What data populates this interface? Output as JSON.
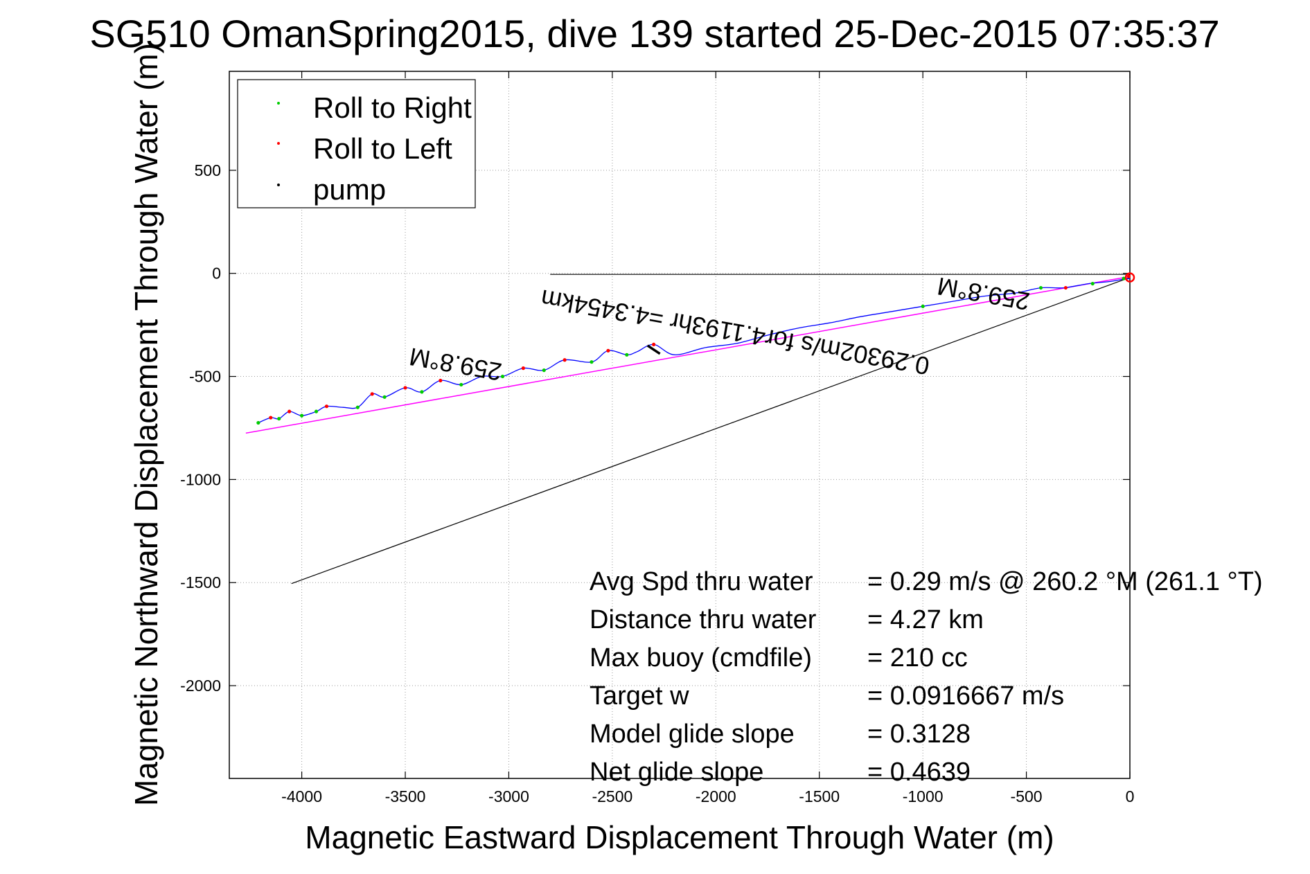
{
  "chart_data": {
    "type": "line",
    "title": "SG510 OmanSpring2015, dive 139 started 25-Dec-2015 07:35:37",
    "xlabel": "Magnetic Eastward Displacement Through Water (m)",
    "ylabel": "Magnetic Northward Displacement Through Water (m)",
    "xlim": [
      -4350,
      0
    ],
    "ylim": [
      -2450,
      980
    ],
    "xticks": [
      -4000,
      -3500,
      -3000,
      -2500,
      -2000,
      -1500,
      -1000,
      -500,
      0
    ],
    "yticks": [
      500,
      0,
      -500,
      -1000,
      -1500,
      -2000
    ],
    "grid": true,
    "legend": {
      "placement": "top-left",
      "entries": [
        {
          "label": "Roll to Right",
          "color": "#00cc00"
        },
        {
          "label": "Roll to Left",
          "color": "#ff0000"
        },
        {
          "label": "pump",
          "color": "#000000"
        }
      ]
    },
    "track": {
      "color": "#0000ff",
      "points": [
        [
          0,
          -25
        ],
        [
          -40,
          -30
        ],
        [
          -100,
          -40
        ],
        [
          -200,
          -50
        ],
        [
          -320,
          -70
        ],
        [
          -430,
          -70
        ],
        [
          -550,
          -95
        ],
        [
          -700,
          -110
        ],
        [
          -850,
          -135
        ],
        [
          -1000,
          -160
        ],
        [
          -1150,
          -185
        ],
        [
          -1300,
          -210
        ],
        [
          -1450,
          -240
        ],
        [
          -1600,
          -265
        ],
        [
          -1750,
          -300
        ],
        [
          -1900,
          -340
        ],
        [
          -2050,
          -360
        ],
        [
          -2200,
          -395
        ],
        [
          -2300,
          -345
        ],
        [
          -2380,
          -380
        ],
        [
          -2430,
          -395
        ],
        [
          -2520,
          -375
        ],
        [
          -2600,
          -430
        ],
        [
          -2730,
          -420
        ],
        [
          -2830,
          -470
        ],
        [
          -2930,
          -460
        ],
        [
          -3030,
          -500
        ],
        [
          -3130,
          -500
        ],
        [
          -3230,
          -540
        ],
        [
          -3330,
          -520
        ],
        [
          -3420,
          -575
        ],
        [
          -3500,
          -555
        ],
        [
          -3600,
          -600
        ],
        [
          -3660,
          -585
        ],
        [
          -3730,
          -650
        ],
        [
          -3800,
          -650
        ],
        [
          -3880,
          -645
        ],
        [
          -3930,
          -670
        ],
        [
          -4000,
          -690
        ],
        [
          -4060,
          -670
        ],
        [
          -4110,
          -705
        ],
        [
          -4150,
          -700
        ],
        [
          -4210,
          -725
        ]
      ]
    },
    "roll_right_points": [
      [
        -30,
        -25
      ],
      [
        -180,
        -50
      ],
      [
        -430,
        -70
      ],
      [
        -1000,
        -160
      ],
      [
        -2430,
        -395
      ],
      [
        -2600,
        -430
      ],
      [
        -2830,
        -470
      ],
      [
        -3030,
        -500
      ],
      [
        -3230,
        -540
      ],
      [
        -3420,
        -575
      ],
      [
        -3600,
        -600
      ],
      [
        -3730,
        -650
      ],
      [
        -3930,
        -670
      ],
      [
        -4000,
        -690
      ],
      [
        -4110,
        -705
      ],
      [
        -4210,
        -725
      ]
    ],
    "roll_left_points": [
      [
        -5,
        -15
      ],
      [
        -310,
        -70
      ],
      [
        -2300,
        -345
      ],
      [
        -2520,
        -375
      ],
      [
        -2730,
        -420
      ],
      [
        -2930,
        -460
      ],
      [
        -3330,
        -520
      ],
      [
        -3500,
        -555
      ],
      [
        -3660,
        -585
      ],
      [
        -3880,
        -645
      ],
      [
        -4060,
        -670
      ],
      [
        -4150,
        -700
      ]
    ],
    "pump_segment": [
      [
        -2330,
        -350
      ],
      [
        -2270,
        -390
      ]
    ],
    "heading_line": {
      "color": "#ff00ff",
      "points": [
        [
          0,
          -15
        ],
        [
          -4270,
          -775
        ]
      ]
    },
    "reference_lines": [
      {
        "color": "#000000",
        "points": [
          [
            0,
            -5
          ],
          [
            -2800,
            -5
          ]
        ]
      },
      {
        "color": "#000000",
        "points": [
          [
            0,
            -20
          ],
          [
            -4050,
            -1505
          ]
        ]
      }
    ],
    "annotations": [
      {
        "text": "259.8°M",
        "x": -700,
        "y": -58,
        "rotation_deg": 190
      },
      {
        "text": "0.29302m/s for4.1193hr =4.3454km",
        "x": -1900,
        "y": -245,
        "rotation_deg": 190
      },
      {
        "text": "259.8°M",
        "x": -3250,
        "y": -400,
        "rotation_deg": 190
      }
    ],
    "stats": [
      {
        "label": "Avg Spd thru water",
        "value": "=  0.29 m/s @ 260.2 °M (261.1 °T)"
      },
      {
        "label": "Distance thru water",
        "value": "=  4.27 km"
      },
      {
        "label": "Max buoy (cmdfile)",
        "value": "= 210 cc"
      },
      {
        "label": "Target w",
        "value": "= 0.0916667 m/s"
      },
      {
        "label": "Model glide slope",
        "value": "= 0.3128"
      },
      {
        "label": "Net glide slope",
        "value": "= 0.4639"
      }
    ]
  }
}
